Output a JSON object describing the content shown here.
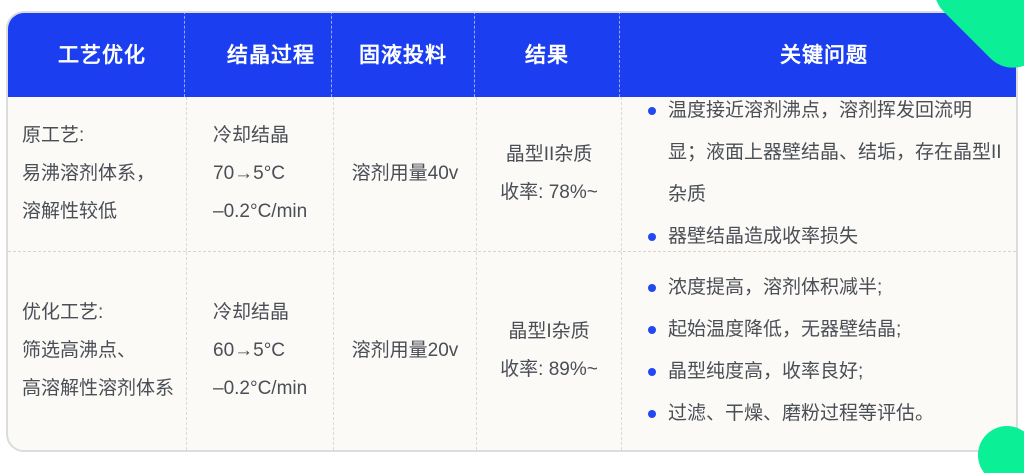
{
  "accent": {
    "header_blue": "#1A3EF0",
    "decor_green": "#0BF097",
    "bullet_blue": "#2148F2"
  },
  "table": {
    "headers": [
      "工艺优化",
      "结晶过程",
      "固液投料",
      "结果",
      "关键问题"
    ],
    "rows": [
      {
        "process": [
          "原工艺:",
          "易沸溶剂体系，",
          "溶解性较低"
        ],
        "crystallization": [
          "冷却结晶",
          "70→5°C",
          "–0.2°C/min"
        ],
        "feeding": "溶剂用量40v",
        "result": [
          "晶型II杂质",
          "收率: 78%~"
        ],
        "issues": [
          "温度接近溶剂沸点，溶剂挥发回流明显；液面上器壁结晶、结垢，存在晶型II杂质",
          "器壁结晶造成收率损失"
        ]
      },
      {
        "process": [
          "优化工艺:",
          "筛选高沸点、",
          "高溶解性溶剂体系"
        ],
        "crystallization": [
          "冷却结晶",
          "60→5°C",
          "–0.2°C/min"
        ],
        "feeding": "溶剂用量20v",
        "result": [
          "晶型I杂质",
          "收率: 89%~"
        ],
        "issues": [
          "浓度提高，溶剂体积减半;",
          "起始温度降低，无器壁结晶;",
          "晶型纯度高，收率良好;",
          "过滤、干燥、磨粉过程等评估。"
        ]
      }
    ]
  }
}
